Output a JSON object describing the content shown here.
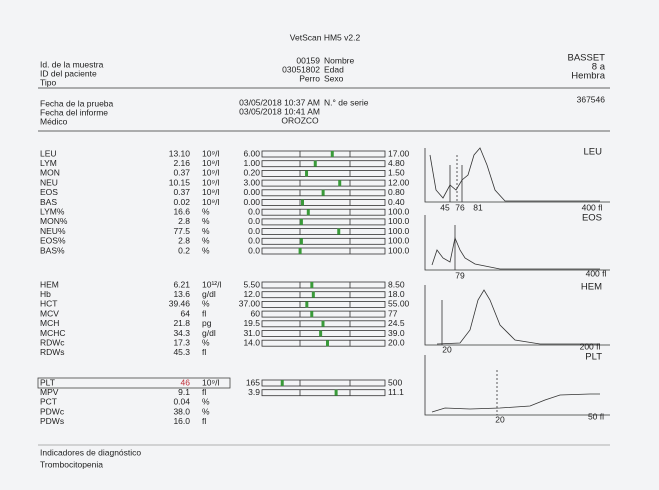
{
  "header": {
    "title": "VetScan HM5 v2.2",
    "info": [
      {
        "label": "Id. de la muestra",
        "value": "00159",
        "field": "Nombre",
        "answer": "BASSET"
      },
      {
        "label": "ID del paciente",
        "value": "03051802",
        "field": "Edad",
        "answer": "8 a"
      },
      {
        "label": "Tipo",
        "value": "Perro",
        "field": "Sexo",
        "answer": "Hembra"
      }
    ],
    "dates": [
      {
        "label": "Fecha de la prueba",
        "value": "03/05/2018 10:37 AM",
        "field": "N.° de serie",
        "answer": "367546"
      },
      {
        "label": "Fecha del informe",
        "value": "03/05/2018 10:41 AM"
      },
      {
        "label": "Médico",
        "value": "OROZCO"
      }
    ]
  },
  "results": [
    [
      {
        "name": "LEU",
        "value": "13.10",
        "unit": "10⁹/l",
        "low": "6.00",
        "high": "17.00"
      },
      {
        "name": "LYM",
        "value": "2.16",
        "unit": "10⁹/l",
        "low": "1.00",
        "high": "4.80"
      },
      {
        "name": "MON",
        "value": "0.37",
        "unit": "10⁹/l",
        "low": "0.20",
        "high": "1.50"
      },
      {
        "name": "NEU",
        "value": "10.15",
        "unit": "10⁹/l",
        "low": "3.00",
        "high": "12.00"
      },
      {
        "name": "EOS",
        "value": "0.37",
        "unit": "10⁹/l",
        "low": "0.00",
        "high": "0.80"
      },
      {
        "name": "BAS",
        "value": "0.02",
        "unit": "10⁹/l",
        "low": "0.00",
        "high": "0.40"
      },
      {
        "name": "LYM%",
        "value": "16.6",
        "unit": "%",
        "low": "0.0",
        "high": "100.0"
      },
      {
        "name": "MON%",
        "value": "2.8",
        "unit": "%",
        "low": "0.0",
        "high": "100.0"
      },
      {
        "name": "NEU%",
        "value": "77.5",
        "unit": "%",
        "low": "0.0",
        "high": "100.0"
      },
      {
        "name": "EOS%",
        "value": "2.8",
        "unit": "%",
        "low": "0.0",
        "high": "100.0"
      },
      {
        "name": "BAS%",
        "value": "0.2",
        "unit": "%",
        "low": "0.0",
        "high": "100.0"
      }
    ],
    [
      {
        "name": "HEM",
        "value": "6.21",
        "unit": "10¹²/l",
        "low": "5.50",
        "high": "8.50"
      },
      {
        "name": "Hb",
        "value": "13.6",
        "unit": "g/dl",
        "low": "12.0",
        "high": "18.0"
      },
      {
        "name": "HCT",
        "value": "39.46",
        "unit": "%",
        "low": "37.00",
        "high": "55.00"
      },
      {
        "name": "MCV",
        "value": "64",
        "unit": "fl",
        "low": "60",
        "high": "77"
      },
      {
        "name": "MCH",
        "value": "21.8",
        "unit": "pg",
        "low": "19.5",
        "high": "24.5"
      },
      {
        "name": "MCHC",
        "value": "34.3",
        "unit": "g/dl",
        "low": "31.0",
        "high": "39.0"
      },
      {
        "name": "RDWc",
        "value": "17.3",
        "unit": "%",
        "low": "14.0",
        "high": "20.0"
      },
      {
        "name": "RDWs",
        "value": "45.3",
        "unit": "fl"
      }
    ],
    [
      {
        "name": "PLT",
        "value": "46",
        "unit": "10⁹/l",
        "low": "165",
        "high": "500",
        "flag": true
      },
      {
        "name": "MPV",
        "value": "9.1",
        "unit": "fl",
        "low": "3.9",
        "high": "11.1"
      },
      {
        "name": "PCT",
        "value": "0.04",
        "unit": "%"
      },
      {
        "name": "PDWc",
        "value": "38.0",
        "unit": "%"
      },
      {
        "name": "PDWs",
        "value": "16.0",
        "unit": "fl"
      }
    ]
  ],
  "histograms": [
    {
      "title": "LEU",
      "ticks": [
        "45",
        "76",
        "81"
      ],
      "end": "400 fl"
    },
    {
      "title": "EOS",
      "ticks": [
        "79"
      ],
      "end": "400 fl"
    },
    {
      "title": "HEM",
      "ticks": [
        "20"
      ],
      "end": "200 fl"
    },
    {
      "title": "PLT",
      "ticks": [
        "20"
      ],
      "end": "50 fl"
    }
  ],
  "footer": {
    "heading": "Indicadores de diagnóstico",
    "finding": "Trombocitopenia"
  }
}
